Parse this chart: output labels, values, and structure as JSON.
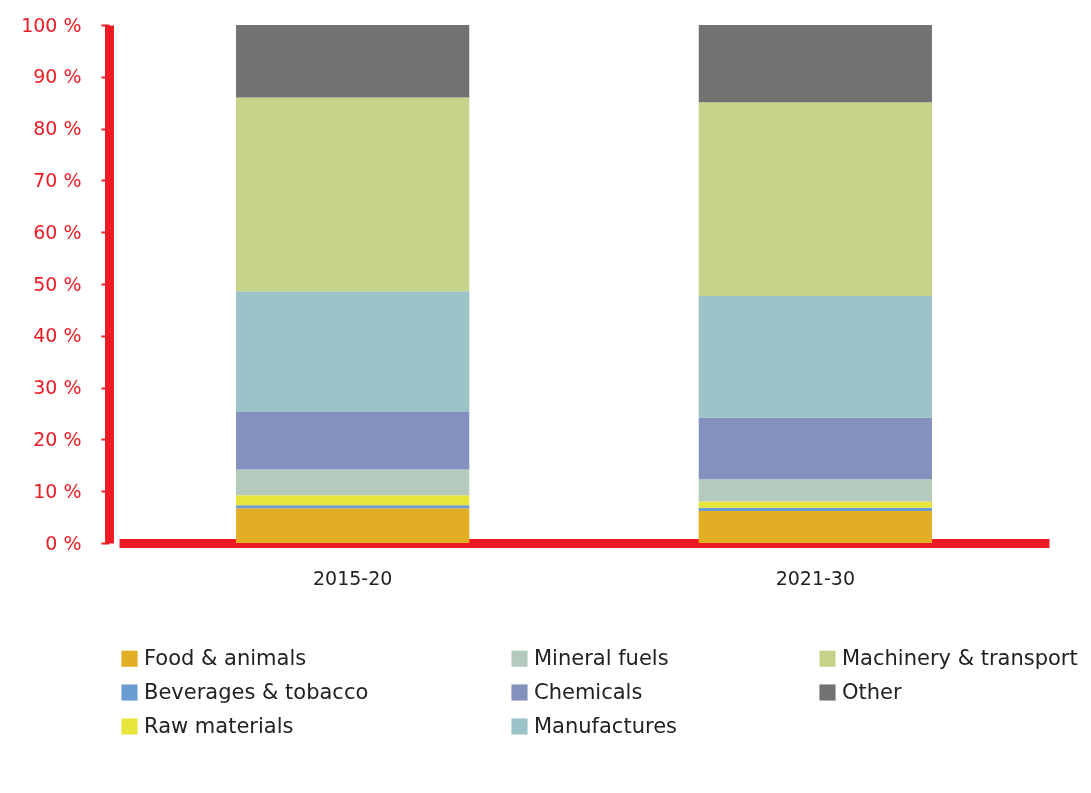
{
  "chart_data": {
    "type": "bar",
    "stacked": true,
    "categories": [
      "2015-20",
      "2021-30"
    ],
    "series": [
      {
        "name": "Food & animals",
        "color": "#e2ae24",
        "values": [
          6.7,
          6.2
        ]
      },
      {
        "name": "Beverages & tobacco",
        "color": "#6a9bd1",
        "values": [
          0.6,
          0.6
        ]
      },
      {
        "name": "Raw materials",
        "color": "#e8e43a",
        "values": [
          1.9,
          1.2
        ]
      },
      {
        "name": "Mineral fuels",
        "color": "#b3cabd",
        "values": [
          5.0,
          4.3
        ]
      },
      {
        "name": "Chemicals",
        "color": "#8490bd",
        "values": [
          11.1,
          11.9
        ]
      },
      {
        "name": "Manufactures",
        "color": "#9bc3c7",
        "values": [
          23.3,
          23.5
        ]
      },
      {
        "name": "Machinery & transport",
        "color": "#c5d287",
        "values": [
          37.4,
          37.4
        ]
      },
      {
        "name": "Other",
        "color": "#717271",
        "values": [
          14.0,
          14.9
        ]
      }
    ],
    "ylim": [
      0,
      100
    ],
    "yticks": [
      {
        "value": 0,
        "label": "0 %"
      },
      {
        "value": 10,
        "label": "10 %"
      },
      {
        "value": 20,
        "label": "20 %"
      },
      {
        "value": 30,
        "label": "30 %"
      },
      {
        "value": 40,
        "label": "40 %"
      },
      {
        "value": 50,
        "label": "50 %"
      },
      {
        "value": 60,
        "label": "60 %"
      },
      {
        "value": 70,
        "label": "70 %"
      },
      {
        "value": 80,
        "label": "80 %"
      },
      {
        "value": 90,
        "label": "90 %"
      },
      {
        "value": 100,
        "label": "100 %"
      }
    ],
    "grid": false,
    "legend": "bottom"
  }
}
